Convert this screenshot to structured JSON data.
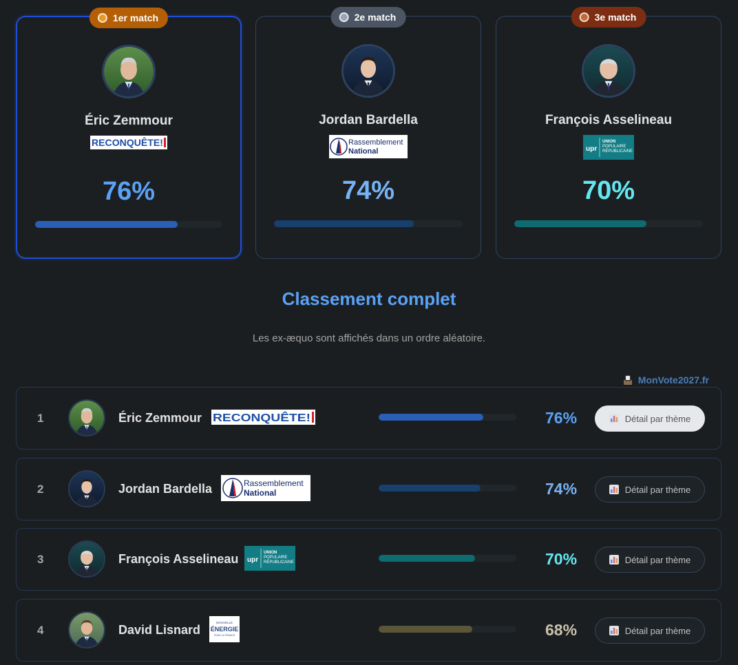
{
  "podium": [
    {
      "badge": "1er match",
      "name": "Éric Zemmour",
      "party_logo_text": "RECONQUÊTE!",
      "percent_label": "76%",
      "percent": 76,
      "color": "#5aa2f5",
      "bar_color": "#2a5fb8",
      "icon": "gold-medal-icon"
    },
    {
      "badge": "2e match",
      "name": "Jordan Bardella",
      "party_logo_text": "Rassemblement National",
      "percent_label": "74%",
      "percent": 74,
      "color": "#76b3f4",
      "bar_color": "#17406e",
      "icon": "silver-medal-icon"
    },
    {
      "badge": "3e match",
      "name": "François Asselineau",
      "party_logo_text": "UNION POPULAIRE RÉPUBLICAINE",
      "percent_label": "70%",
      "percent": 70,
      "color": "#63e7f0",
      "bar_color": "#0e6b70",
      "icon": "bronze-medal-icon"
    }
  ],
  "section": {
    "title": "Classement complet",
    "subtitle": "Les ex-æquo sont affichés dans un ordre aléatoire."
  },
  "brand": {
    "label": "MonVote2027.fr",
    "icon": "ballot-box-icon"
  },
  "ranking": [
    {
      "rank": "1",
      "name": "Éric Zemmour",
      "party_logo_text": "RECONQUÊTE!",
      "percent_label": "76%",
      "percent": 76,
      "color": "#5aa2f5",
      "bar_color": "#2a5fb8",
      "button_label": "Détail par thème",
      "button_icon": "bar-chart-icon"
    },
    {
      "rank": "2",
      "name": "Jordan Bardella",
      "party_logo_text": "Rassemblement National",
      "percent_label": "74%",
      "percent": 74,
      "color": "#76b3f4",
      "bar_color": "#17406e",
      "button_label": "Détail par thème",
      "button_icon": "bar-chart-icon"
    },
    {
      "rank": "3",
      "name": "François Asselineau",
      "party_logo_text": "UNION POPULAIRE RÉPUBLICAINE",
      "percent_label": "70%",
      "percent": 70,
      "color": "#63e7f0",
      "bar_color": "#0e6b70",
      "button_label": "Détail par thème",
      "button_icon": "bar-chart-icon"
    },
    {
      "rank": "4",
      "name": "David Lisnard",
      "party_logo_text": "NOUVELLE ÉNERGIE",
      "percent_label": "68%",
      "percent": 68,
      "color": "#c9c2ae",
      "bar_color": "#5b553a",
      "button_label": "Détail par thème",
      "button_icon": "bar-chart-icon"
    }
  ]
}
